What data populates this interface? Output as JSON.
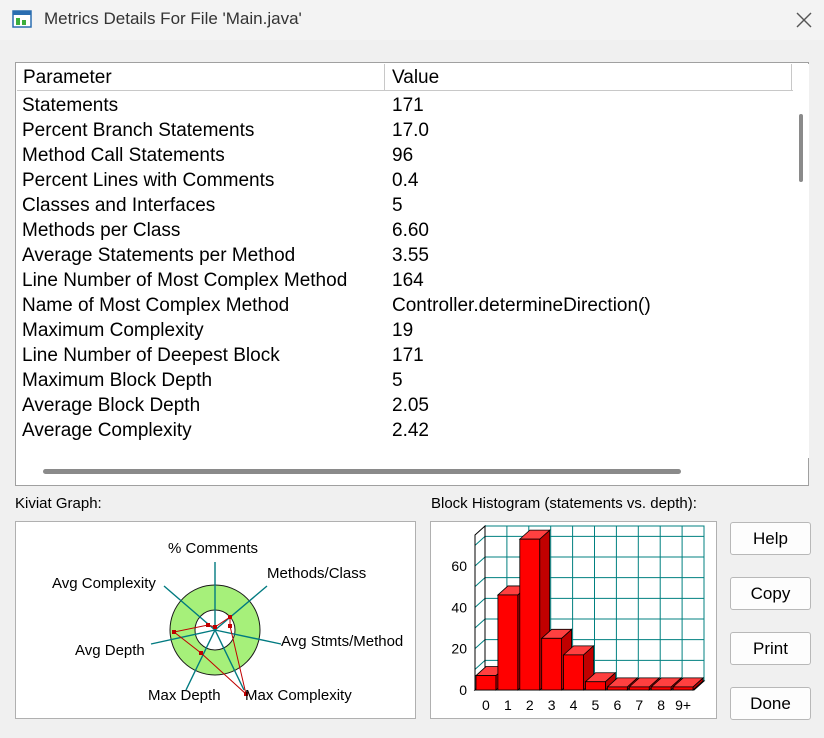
{
  "window": {
    "title": "Metrics Details For File 'Main.java'",
    "icon": "app-window-icon",
    "close_icon": "close-icon"
  },
  "table": {
    "columns": [
      "Parameter",
      "Value"
    ],
    "rows": [
      {
        "parameter": "Statements",
        "value": "171"
      },
      {
        "parameter": "Percent Branch Statements",
        "value": "17.0"
      },
      {
        "parameter": "Method Call Statements",
        "value": "96"
      },
      {
        "parameter": "Percent Lines with Comments",
        "value": "0.4"
      },
      {
        "parameter": "Classes and Interfaces",
        "value": "5"
      },
      {
        "parameter": "Methods per Class",
        "value": "6.60"
      },
      {
        "parameter": "Average Statements per Method",
        "value": "3.55"
      },
      {
        "parameter": "Line Number of Most Complex Method",
        "value": "164"
      },
      {
        "parameter": "Name of Most Complex Method",
        "value": "Controller.determineDirection()"
      },
      {
        "parameter": "Maximum Complexity",
        "value": "19"
      },
      {
        "parameter": "Line Number of Deepest Block",
        "value": "171"
      },
      {
        "parameter": "Maximum Block Depth",
        "value": "5"
      },
      {
        "parameter": "Average Block Depth",
        "value": "2.05"
      },
      {
        "parameter": "Average Complexity",
        "value": "2.42"
      }
    ]
  },
  "kiviat": {
    "label": "Kiviat Graph:",
    "axes": [
      "% Comments",
      "Methods/Class",
      "Avg Stmts/Method",
      "Max Complexity",
      "Max Depth",
      "Avg Depth",
      "Avg Complexity"
    ]
  },
  "histogram": {
    "label": "Block Histogram (statements vs. depth):"
  },
  "chart_data": {
    "type": "bar",
    "categories": [
      "0",
      "1",
      "2",
      "3",
      "4",
      "5",
      "6",
      "7",
      "8",
      "9+"
    ],
    "values": [
      7,
      46,
      73,
      25,
      17,
      4,
      0,
      0,
      0,
      0
    ],
    "yticks": [
      0,
      20,
      40,
      60
    ],
    "ylim": [
      0,
      75
    ],
    "grid": true,
    "bar_color": "#ff0000",
    "grid_color": "#008080"
  },
  "buttons": {
    "help": "Help",
    "copy": "Copy",
    "print": "Print",
    "done": "Done"
  }
}
